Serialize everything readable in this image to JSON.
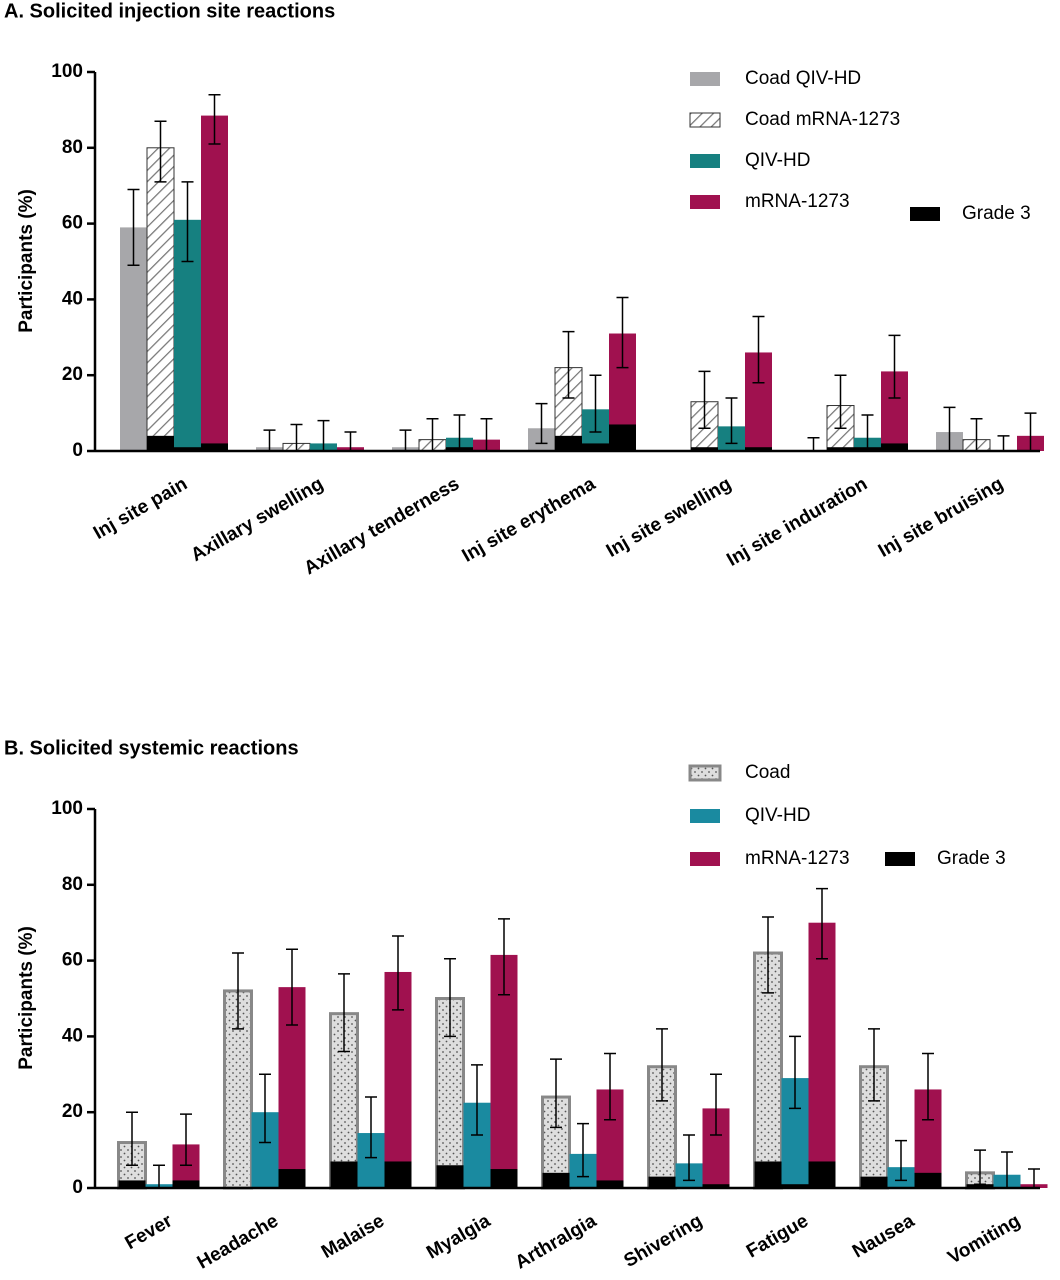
{
  "chart_data": [
    {
      "type": "bar",
      "title": "A. Solicited injection site reactions",
      "ylabel": "Participants  (%)",
      "categories": [
        "Inj site pain",
        "Axillary swelling",
        "Axillary tenderness",
        "Inj site erythema",
        "Inj site swelling",
        "Inj site induration",
        "Inj site bruising"
      ],
      "ylim": [
        0,
        100
      ],
      "yticks": [
        0,
        20,
        40,
        60,
        80,
        100
      ],
      "overlay": {
        "name": "Grade 3",
        "color": "#000000"
      },
      "series": [
        {
          "name": "Coad QIV-HD",
          "color": "#a7a7aa",
          "pattern": "solid",
          "values": [
            59,
            1,
            1,
            6,
            0,
            0,
            5
          ],
          "error_low": [
            49,
            0,
            0,
            2,
            null,
            0,
            0
          ],
          "error_high": [
            69,
            5.5,
            5.5,
            12.5,
            null,
            3.5,
            11.5
          ],
          "grade3": [
            0,
            0,
            0,
            0,
            0,
            0,
            0
          ]
        },
        {
          "name": "Coad mRNA-1273",
          "color": "#777777",
          "pattern": "hatch",
          "values": [
            80,
            2,
            3,
            22,
            13,
            12,
            3
          ],
          "error_low": [
            71,
            0,
            0,
            14,
            6,
            6,
            0
          ],
          "error_high": [
            87,
            7,
            8.5,
            31.5,
            21,
            20,
            8.5
          ],
          "grade3": [
            4,
            0,
            0,
            4,
            1,
            1,
            0
          ]
        },
        {
          "name": "QIV-HD",
          "color": "#168080",
          "pattern": "solid",
          "values": [
            61,
            2,
            3.5,
            11,
            6.5,
            3.5,
            0
          ],
          "error_low": [
            50,
            0,
            0,
            5,
            2,
            0,
            0
          ],
          "error_high": [
            71,
            8,
            9.5,
            20,
            14,
            9.5,
            4
          ],
          "grade3": [
            1,
            0,
            1,
            2,
            0,
            1,
            0
          ]
        },
        {
          "name": "mRNA-1273",
          "color": "#a0114f",
          "pattern": "solid",
          "values": [
            88.5,
            1,
            3,
            31,
            26,
            21,
            4
          ],
          "error_low": [
            81,
            0,
            0,
            22,
            18,
            14,
            0
          ],
          "error_high": [
            94,
            5,
            8.5,
            40.5,
            35.5,
            30.5,
            10
          ],
          "grade3": [
            2,
            0,
            0,
            7,
            1,
            2,
            0
          ]
        }
      ]
    },
    {
      "type": "bar",
      "title": "B. Solicited systemic reactions",
      "ylabel": "Participants  (%)",
      "categories": [
        "Fever",
        "Headache",
        "Malaise",
        "Myalgia",
        "Arthralgia",
        "Shivering",
        "Fatigue",
        "Nausea",
        "Vomiting"
      ],
      "ylim": [
        0,
        100
      ],
      "yticks": [
        0,
        20,
        40,
        60,
        80,
        100
      ],
      "overlay": {
        "name": "Grade 3",
        "color": "#000000"
      },
      "series": [
        {
          "name": "Coad",
          "color": "#888888",
          "pattern": "dots",
          "values": [
            12,
            52,
            46,
            50,
            24,
            32,
            62,
            32,
            4
          ],
          "error_low": [
            6,
            42,
            36,
            40,
            16,
            23,
            51.5,
            23,
            1
          ],
          "error_high": [
            20,
            62,
            56.5,
            60.5,
            34,
            42,
            71.5,
            42,
            10
          ],
          "grade3": [
            2,
            0,
            7,
            6,
            4,
            3,
            7,
            3,
            1
          ]
        },
        {
          "name": "QIV-HD",
          "color": "#1a8aa0",
          "pattern": "solid",
          "values": [
            1,
            20,
            14.5,
            22.5,
            9,
            6.5,
            29,
            5.5,
            3.5
          ],
          "error_low": [
            0,
            12,
            8,
            14,
            3,
            2,
            21,
            2,
            0
          ],
          "error_high": [
            6,
            30,
            24,
            32.5,
            17,
            14,
            40,
            12.5,
            9.5
          ],
          "grade3": [
            0,
            0,
            0,
            0,
            0,
            0,
            1,
            0,
            0
          ]
        },
        {
          "name": "mRNA-1273",
          "color": "#a0114f",
          "pattern": "solid",
          "values": [
            11.5,
            53,
            57,
            61.5,
            26,
            21,
            70,
            26,
            1
          ],
          "error_low": [
            6,
            43,
            47,
            51,
            18,
            14,
            60.5,
            18,
            0
          ],
          "error_high": [
            19.5,
            63,
            66.5,
            71,
            35.5,
            30,
            79,
            35.5,
            5
          ],
          "grade3": [
            2,
            5,
            7,
            5,
            2,
            1,
            7,
            4,
            0
          ]
        }
      ]
    }
  ]
}
